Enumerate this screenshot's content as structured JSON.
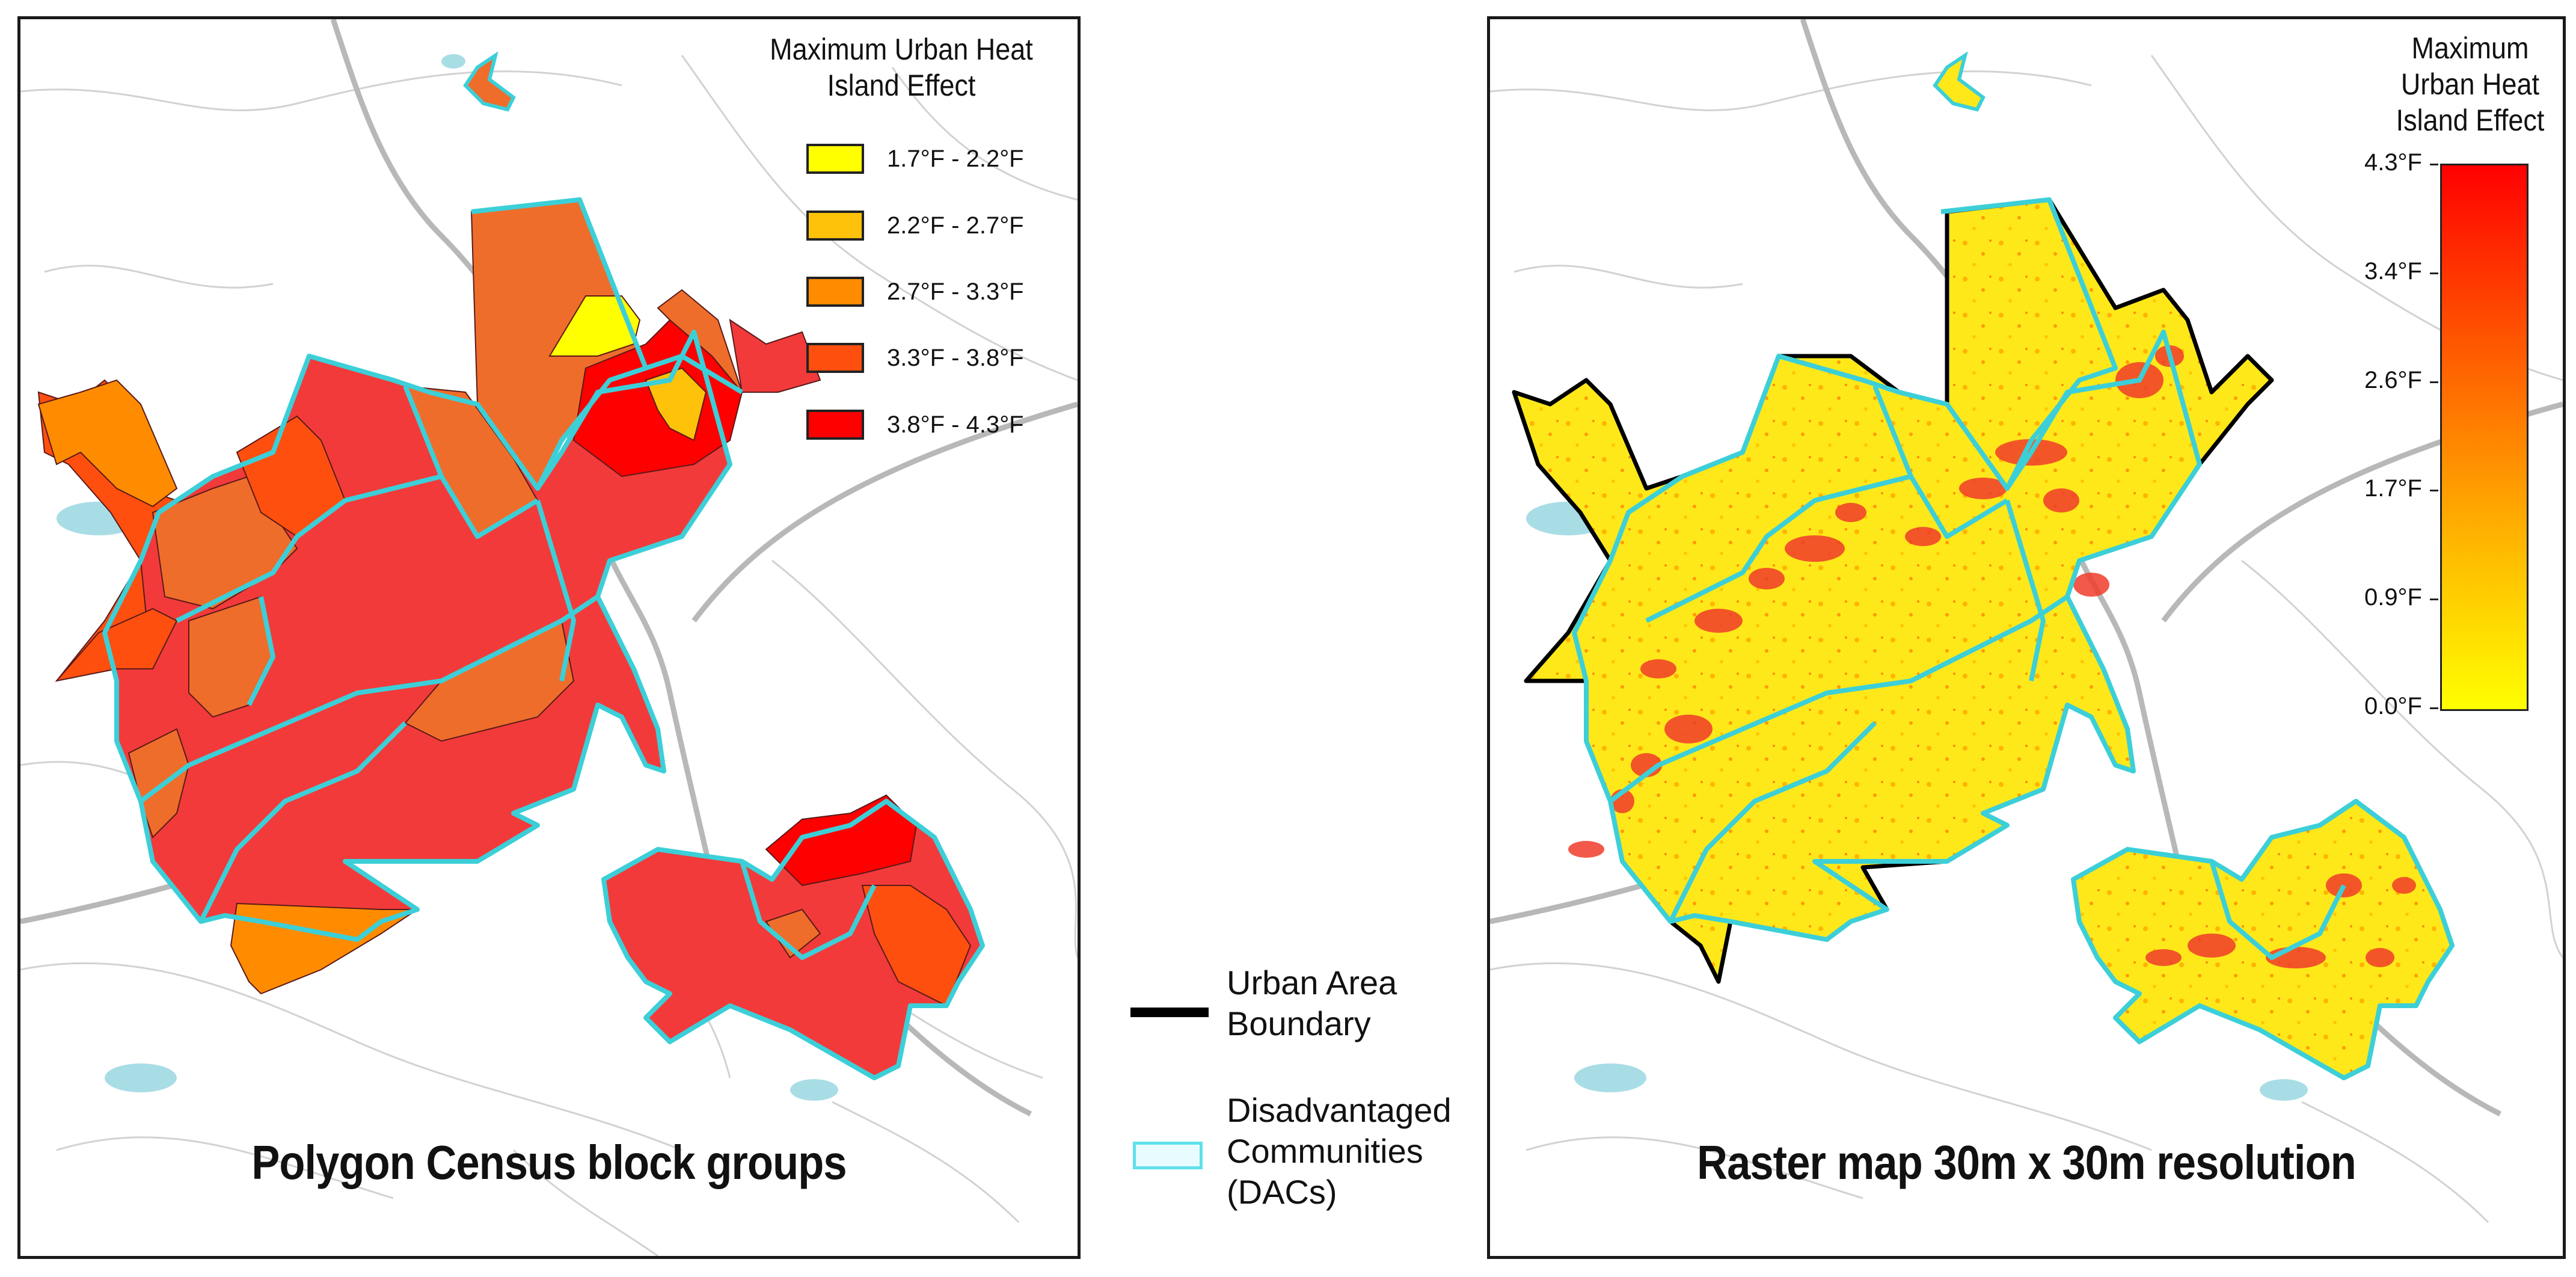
{
  "left_panel": {
    "title": "Polygon Census block groups",
    "legend": {
      "title_line1": "Maximum Urban Heat",
      "title_line2": "Island Effect",
      "items": [
        {
          "label": "1.7°F - 2.2°F",
          "color": "#ffff00"
        },
        {
          "label": "2.2°F - 2.7°F",
          "color": "#ffc20a"
        },
        {
          "label": "2.7°F - 3.3°F",
          "color": "#ff8c00"
        },
        {
          "label": "3.3°F - 3.8°F",
          "color": "#ff4f0f"
        },
        {
          "label": "3.8°F - 4.3°F",
          "color": "#ff0000"
        }
      ]
    }
  },
  "right_panel": {
    "title": "Raster map 30m x 30m resolution",
    "legend": {
      "title_line1": "Maximum",
      "title_line2": "Urban Heat",
      "title_line3": "Island Effect",
      "ticks": [
        "4.3°F",
        "3.4°F",
        "2.6°F",
        "1.7°F",
        "0.9°F",
        "0.0°F"
      ],
      "color_low": "#ffff00",
      "color_high": "#ff0000"
    }
  },
  "key": {
    "urban_boundary": {
      "line1": "Urban Area",
      "line2": "Boundary",
      "color": "#000000"
    },
    "dacs": {
      "line1": "Disadvantaged",
      "line2": "Communities",
      "line3": "(DACs)",
      "color": "#3fd6e0"
    }
  },
  "map_colors": {
    "road": "#cfcfcf",
    "highway": "#b5b5b5",
    "water": "#a9dde6",
    "block_group_fill": "#f23a3a",
    "dac_outline": "#3ccfd8"
  }
}
